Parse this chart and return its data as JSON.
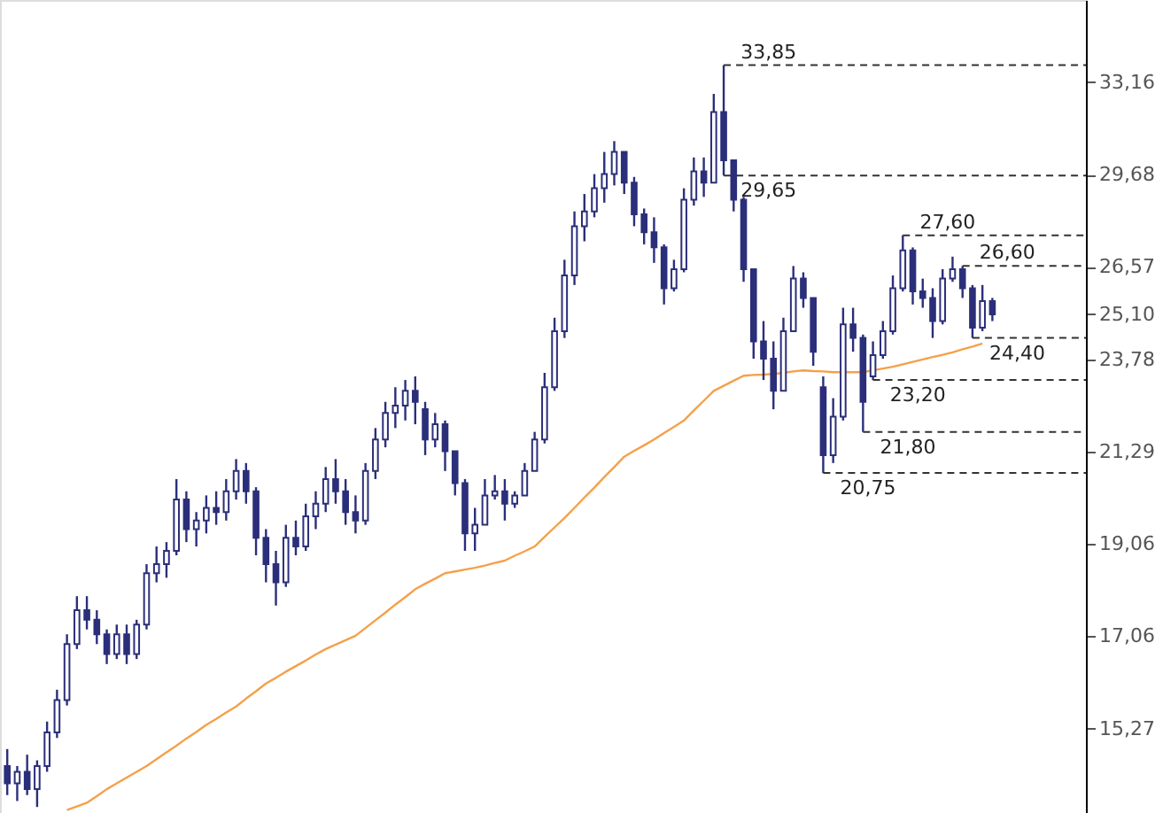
{
  "chart_data": {
    "type": "candlestick",
    "categories": [
      null,
      null,
      null,
      null,
      null,
      null,
      null,
      null,
      null,
      null,
      null,
      null,
      null,
      null,
      null,
      null,
      null,
      null,
      null,
      null,
      null,
      null,
      null,
      null,
      null,
      null,
      null,
      null,
      null,
      null,
      null,
      null,
      null,
      null,
      null,
      null,
      null,
      null,
      null,
      null,
      null,
      null,
      null,
      null,
      null,
      null,
      null,
      null,
      null,
      null,
      null,
      null,
      null,
      null,
      null,
      null,
      null,
      null,
      null,
      null,
      null,
      null,
      null,
      null,
      null,
      null,
      null,
      null,
      null,
      null,
      null,
      null,
      null,
      null,
      null,
      null,
      null,
      null,
      null,
      null,
      null,
      null,
      null,
      null,
      null,
      null,
      null,
      null,
      null,
      null,
      null,
      null,
      null,
      null,
      null,
      null,
      null,
      null,
      null,
      null
    ],
    "color": "#2b2f7a",
    "ohlc": [
      [
        14.6,
        14.9,
        14.1,
        14.3
      ],
      [
        14.3,
        14.6,
        14.0,
        14.5
      ],
      [
        14.5,
        14.8,
        14.1,
        14.2
      ],
      [
        14.2,
        14.7,
        13.9,
        14.6
      ],
      [
        14.6,
        15.4,
        14.5,
        15.2
      ],
      [
        15.2,
        16.0,
        15.1,
        15.8
      ],
      [
        15.8,
        17.1,
        15.7,
        16.9
      ],
      [
        16.9,
        17.9,
        16.8,
        17.6
      ],
      [
        17.6,
        17.9,
        17.2,
        17.4
      ],
      [
        17.4,
        17.6,
        16.9,
        17.1
      ],
      [
        17.1,
        17.2,
        16.5,
        16.7
      ],
      [
        16.7,
        17.3,
        16.6,
        17.1
      ],
      [
        17.1,
        17.3,
        16.5,
        16.7
      ],
      [
        16.7,
        17.4,
        16.6,
        17.3
      ],
      [
        17.3,
        18.6,
        17.2,
        18.4
      ],
      [
        18.4,
        19.0,
        18.2,
        18.6
      ],
      [
        18.6,
        19.1,
        18.3,
        18.9
      ],
      [
        18.9,
        20.6,
        18.8,
        20.1
      ],
      [
        20.1,
        20.3,
        19.1,
        19.4
      ],
      [
        19.4,
        19.8,
        19.0,
        19.6
      ],
      [
        19.6,
        20.2,
        19.3,
        19.9
      ],
      [
        19.9,
        20.3,
        19.5,
        19.8
      ],
      [
        19.8,
        20.6,
        19.6,
        20.3
      ],
      [
        20.3,
        21.1,
        20.1,
        20.8
      ],
      [
        20.8,
        21.0,
        20.0,
        20.3
      ],
      [
        20.3,
        20.4,
        18.8,
        19.2
      ],
      [
        19.2,
        19.4,
        18.2,
        18.6
      ],
      [
        18.6,
        18.9,
        17.7,
        18.2
      ],
      [
        18.2,
        19.5,
        18.1,
        19.2
      ],
      [
        19.2,
        19.6,
        18.8,
        19.0
      ],
      [
        19.0,
        20.0,
        18.9,
        19.7
      ],
      [
        19.7,
        20.3,
        19.4,
        20.0
      ],
      [
        20.0,
        20.9,
        19.8,
        20.6
      ],
      [
        20.6,
        21.1,
        20.0,
        20.3
      ],
      [
        20.3,
        20.6,
        19.5,
        19.8
      ],
      [
        19.8,
        20.2,
        19.3,
        19.6
      ],
      [
        19.6,
        21.0,
        19.5,
        20.8
      ],
      [
        20.8,
        21.9,
        20.6,
        21.6
      ],
      [
        21.6,
        22.6,
        21.4,
        22.3
      ],
      [
        22.3,
        23.0,
        21.9,
        22.5
      ],
      [
        22.5,
        23.2,
        22.1,
        22.9
      ],
      [
        22.9,
        23.3,
        22.0,
        22.6
      ],
      [
        22.4,
        22.6,
        21.2,
        21.6
      ],
      [
        21.6,
        22.3,
        21.4,
        22.0
      ],
      [
        22.0,
        22.1,
        20.8,
        21.3
      ],
      [
        21.3,
        21.3,
        20.2,
        20.5
      ],
      [
        20.5,
        20.6,
        18.9,
        19.3
      ],
      [
        19.3,
        19.9,
        18.9,
        19.5
      ],
      [
        19.5,
        20.6,
        19.5,
        20.2
      ],
      [
        20.2,
        20.7,
        20.1,
        20.3
      ],
      [
        20.3,
        20.6,
        19.6,
        20.0
      ],
      [
        20.0,
        20.3,
        19.9,
        20.2
      ],
      [
        20.2,
        21.0,
        20.2,
        20.8
      ],
      [
        20.8,
        21.8,
        20.8,
        21.6
      ],
      [
        21.6,
        23.4,
        21.5,
        23.0
      ],
      [
        23.0,
        25.0,
        22.9,
        24.6
      ],
      [
        24.6,
        26.8,
        24.4,
        26.3
      ],
      [
        26.3,
        28.4,
        26.0,
        27.9
      ],
      [
        27.9,
        29.0,
        27.4,
        28.4
      ],
      [
        28.4,
        29.7,
        28.2,
        29.2
      ],
      [
        29.2,
        30.5,
        28.7,
        29.7
      ],
      [
        29.7,
        30.9,
        29.3,
        30.5
      ],
      [
        30.5,
        30.5,
        29.0,
        29.4
      ],
      [
        29.4,
        29.6,
        27.9,
        28.3
      ],
      [
        28.3,
        28.5,
        27.3,
        27.7
      ],
      [
        27.7,
        28.2,
        26.7,
        27.2
      ],
      [
        27.2,
        27.3,
        25.4,
        25.9
      ],
      [
        25.9,
        26.8,
        25.8,
        26.5
      ],
      [
        26.5,
        29.2,
        26.4,
        28.8
      ],
      [
        28.8,
        30.3,
        28.6,
        29.8
      ],
      [
        29.8,
        30.3,
        28.9,
        29.4
      ],
      [
        29.4,
        32.7,
        29.4,
        32.0
      ],
      [
        32.0,
        33.85,
        29.65,
        30.2
      ],
      [
        30.2,
        30.2,
        28.4,
        28.8
      ],
      [
        28.8,
        28.9,
        26.1,
        26.5
      ],
      [
        26.5,
        26.5,
        23.8,
        24.3
      ],
      [
        24.3,
        24.9,
        23.2,
        23.8
      ],
      [
        23.8,
        24.3,
        22.4,
        22.9
      ],
      [
        22.9,
        25.0,
        22.9,
        24.6
      ],
      [
        24.6,
        26.6,
        24.6,
        26.2
      ],
      [
        26.2,
        26.4,
        25.3,
        25.6
      ],
      [
        25.6,
        25.6,
        23.6,
        24.0
      ],
      [
        23.0,
        23.3,
        20.75,
        21.2
      ],
      [
        21.2,
        22.7,
        21.0,
        22.2
      ],
      [
        22.2,
        25.3,
        22.1,
        24.8
      ],
      [
        24.8,
        25.3,
        24.0,
        24.4
      ],
      [
        24.4,
        24.5,
        21.8,
        22.6
      ],
      [
        23.3,
        24.3,
        23.2,
        23.9
      ],
      [
        23.9,
        24.9,
        23.8,
        24.6
      ],
      [
        24.6,
        26.3,
        24.5,
        25.9
      ],
      [
        25.9,
        27.6,
        25.8,
        27.1
      ],
      [
        27.1,
        27.2,
        25.4,
        25.8
      ],
      [
        25.8,
        26.2,
        25.3,
        25.6
      ],
      [
        25.6,
        25.9,
        24.4,
        24.9
      ],
      [
        24.9,
        26.5,
        24.8,
        26.2
      ],
      [
        26.2,
        26.9,
        26.1,
        26.5
      ],
      [
        26.5,
        26.6,
        25.6,
        25.9
      ],
      [
        25.9,
        26.0,
        24.4,
        24.7
      ],
      [
        24.7,
        26.0,
        24.6,
        25.5
      ],
      [
        25.5,
        25.6,
        24.9,
        25.1
      ]
    ],
    "series": [
      {
        "type": "line",
        "color": "#f5a04a",
        "values": [
          null,
          null,
          null,
          null,
          null,
          null,
          13.85,
          13.91,
          13.97,
          14.08,
          14.2,
          14.3,
          14.4,
          14.5,
          14.6,
          14.72,
          14.84,
          14.96,
          15.09,
          15.21,
          15.34,
          15.45,
          15.57,
          15.68,
          15.83,
          15.97,
          16.12,
          16.23,
          16.35,
          16.46,
          16.57,
          16.69,
          16.8,
          16.89,
          16.98,
          17.07,
          17.23,
          17.39,
          17.55,
          17.72,
          17.88,
          18.05,
          18.17,
          18.28,
          18.4,
          18.44,
          18.48,
          18.52,
          18.57,
          18.63,
          18.68,
          18.79,
          18.89,
          19.0,
          19.22,
          19.44,
          19.66,
          19.9,
          20.15,
          20.39,
          20.65,
          20.9,
          21.16,
          21.31,
          21.45,
          21.6,
          21.77,
          21.93,
          22.1,
          22.37,
          22.63,
          22.9,
          23.04,
          23.18,
          23.32,
          23.34,
          23.35,
          23.37,
          23.4,
          23.44,
          23.47,
          23.45,
          23.44,
          23.42,
          23.42,
          23.42,
          23.42,
          23.47,
          23.52,
          23.57,
          23.64,
          23.71,
          23.78,
          23.85,
          23.91,
          23.98,
          24.07,
          24.15,
          24.24,
          null
        ]
      }
    ],
    "log": "y",
    "ylim": [
      13.8,
      36.6
    ],
    "yticks": [
      {
        "value": 15.27,
        "label": "15,27"
      },
      {
        "value": 17.06,
        "label": "17,06"
      },
      {
        "value": 19.06,
        "label": "19,06"
      },
      {
        "value": 21.29,
        "label": "21,29"
      },
      {
        "value": 23.78,
        "label": "23,78"
      },
      {
        "value": 25.1,
        "label": "25,10"
      },
      {
        "value": 26.57,
        "label": "26,57"
      },
      {
        "value": 29.68,
        "label": "29,68"
      },
      {
        "value": 33.16,
        "label": "33,16"
      }
    ],
    "ref_lines": [
      {
        "axis": "y",
        "value": 33.85,
        "label": "33,85",
        "line_style": "dashed",
        "color": "#333333"
      },
      {
        "axis": "y",
        "value": 29.65,
        "label": "29,65",
        "line_style": "dashed",
        "color": "#333333"
      },
      {
        "axis": "y",
        "value": 27.6,
        "label": "27,60",
        "line_style": "dashed",
        "color": "#333333"
      },
      {
        "axis": "y",
        "value": 26.6,
        "label": "26,60",
        "line_style": "dashed",
        "color": "#333333"
      },
      {
        "axis": "y",
        "value": 24.4,
        "label": "24,40",
        "line_style": "dashed",
        "color": "#333333"
      },
      {
        "axis": "y",
        "value": 23.2,
        "label": "23,20",
        "line_style": "dashed",
        "color": "#333333"
      },
      {
        "axis": "y",
        "value": 21.8,
        "label": "21,80",
        "line_style": "dashed",
        "color": "#333333"
      },
      {
        "axis": "y",
        "value": 20.75,
        "label": "20,75",
        "line_style": "dashed",
        "color": "#333333"
      }
    ],
    "grid": false,
    "tick_labels": "y"
  }
}
